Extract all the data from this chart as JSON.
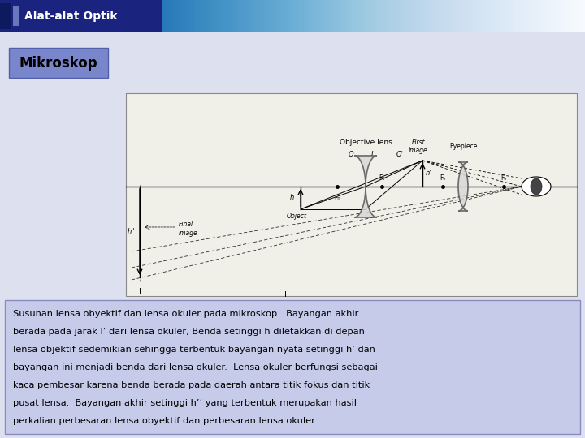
{
  "title_bar_text": "Alat-alat Optik",
  "title_bar_bg": "#1a237e",
  "title_bar_fg": "#ffffff",
  "header_label": "Mikroskop",
  "header_label_bg": "#7986cb",
  "header_label_fg": "#000000",
  "page_bg": "#dde0ef",
  "diagram_bg": "#f0efe8",
  "text_box_bg": "#c5cae9",
  "text_box_fg": "#000000",
  "body_text_line1": "Susunan lensa obyektif dan lensa okuler pada mikroskop.  Bayangan akhir",
  "body_text_line2": "berada pada jarak l’ dari lensa okuler, Benda setinggi h diletakkan di depan",
  "body_text_line3": "lensa objektif sedemikian sehingga terbentuk bayangan nyata setinggi h’ dan",
  "body_text_line4": "bayangan ini menjadi benda dari lensa okuler.  Lensa okuler berfungsi sebagai",
  "body_text_line5": "kaca pembesar karena benda berada pada daerah antara titik fokus dan titik",
  "body_text_line6": "pusat lensa.  Bayangan akhir setinggi h’’ yang terbentuk merupakan hasil",
  "body_text_line7": "perkalian perbesaran lensa obyektif dan perbesaran lensa okuler",
  "fig_width": 7.2,
  "fig_height": 5.4,
  "dpi": 100
}
